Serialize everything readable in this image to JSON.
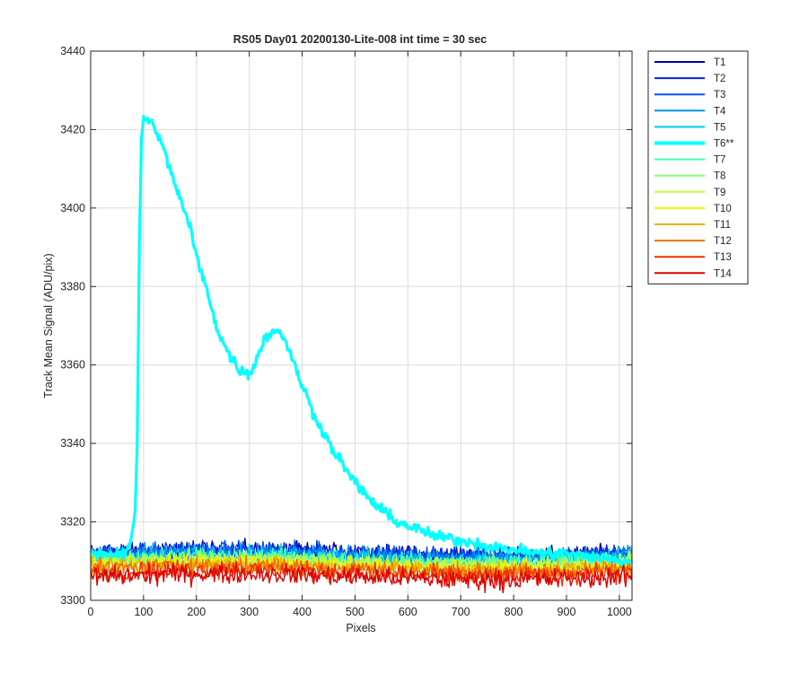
{
  "chart_data": {
    "type": "line",
    "title": "RS05 Day01 20200130-Lite-008 int time = 30 sec",
    "xlabel": "Pixels",
    "ylabel": "Track Mean Signal (ADU/pix)",
    "xlim": [
      0,
      1024
    ],
    "ylim": [
      3300,
      3440
    ],
    "xticks": [
      0,
      100,
      200,
      300,
      400,
      500,
      600,
      700,
      800,
      900,
      1000
    ],
    "yticks": [
      3300,
      3320,
      3340,
      3360,
      3380,
      3400,
      3420,
      3440
    ],
    "grid": true,
    "legend_position": "outside-right",
    "highlight_series": "T6**",
    "series": [
      {
        "name": "T1",
        "color": "#0000aa",
        "level": 3312,
        "noise": 1.6
      },
      {
        "name": "T2",
        "color": "#0020dd",
        "level": 3312,
        "noise": 1.6
      },
      {
        "name": "T3",
        "color": "#0050f0",
        "level": 3312,
        "noise": 1.6
      },
      {
        "name": "T4",
        "color": "#0090f0",
        "level": 3311.5,
        "noise": 1.6
      },
      {
        "name": "T5",
        "color": "#00c8f8",
        "level": 3311,
        "noise": 1.6
      },
      {
        "name": "T6**",
        "color": "#00ffff",
        "bold": true,
        "x": [
          0,
          40,
          60,
          70,
          78,
          84,
          88,
          92,
          96,
          100,
          110,
          120,
          130,
          140,
          150,
          160,
          170,
          180,
          190,
          200,
          210,
          220,
          230,
          240,
          250,
          260,
          270,
          280,
          290,
          300,
          310,
          320,
          330,
          340,
          350,
          360,
          370,
          380,
          390,
          400,
          420,
          440,
          460,
          480,
          500,
          520,
          540,
          560,
          580,
          600,
          620,
          640,
          660,
          680,
          700,
          720,
          740,
          760,
          780,
          800,
          850,
          900,
          950,
          1000,
          1024
        ],
        "y": [
          3312,
          3312,
          3312,
          3313,
          3316,
          3322,
          3340,
          3390,
          3418,
          3423,
          3422,
          3421,
          3418,
          3414,
          3410,
          3406,
          3402,
          3398,
          3394,
          3388,
          3383,
          3379,
          3374,
          3369,
          3366,
          3363,
          3361,
          3359,
          3358,
          3358,
          3360,
          3364,
          3367,
          3368,
          3369,
          3368,
          3366,
          3362,
          3358,
          3355,
          3348,
          3343,
          3338,
          3334,
          3330,
          3327,
          3324,
          3322,
          3320,
          3319,
          3318,
          3317,
          3316,
          3316,
          3315,
          3315,
          3314,
          3314,
          3313,
          3313,
          3312,
          3312,
          3311,
          3310,
          3310
        ],
        "noise": 1.0
      },
      {
        "name": "T7",
        "color": "#40ffc0",
        "level": 3310.5,
        "noise": 1.5
      },
      {
        "name": "T8",
        "color": "#80ff80",
        "level": 3310,
        "noise": 1.5
      },
      {
        "name": "T9",
        "color": "#c0ff40",
        "level": 3309.5,
        "noise": 1.5
      },
      {
        "name": "T10",
        "color": "#f0f000",
        "level": 3309,
        "noise": 1.5
      },
      {
        "name": "T11",
        "color": "#f0b000",
        "level": 3308.5,
        "noise": 1.5
      },
      {
        "name": "T12",
        "color": "#f07000",
        "level": 3308,
        "noise": 1.6
      },
      {
        "name": "T13",
        "color": "#f03000",
        "level": 3307,
        "noise": 1.7
      },
      {
        "name": "T14",
        "color": "#dd0000",
        "level": 3306,
        "noise": 1.8
      }
    ]
  }
}
